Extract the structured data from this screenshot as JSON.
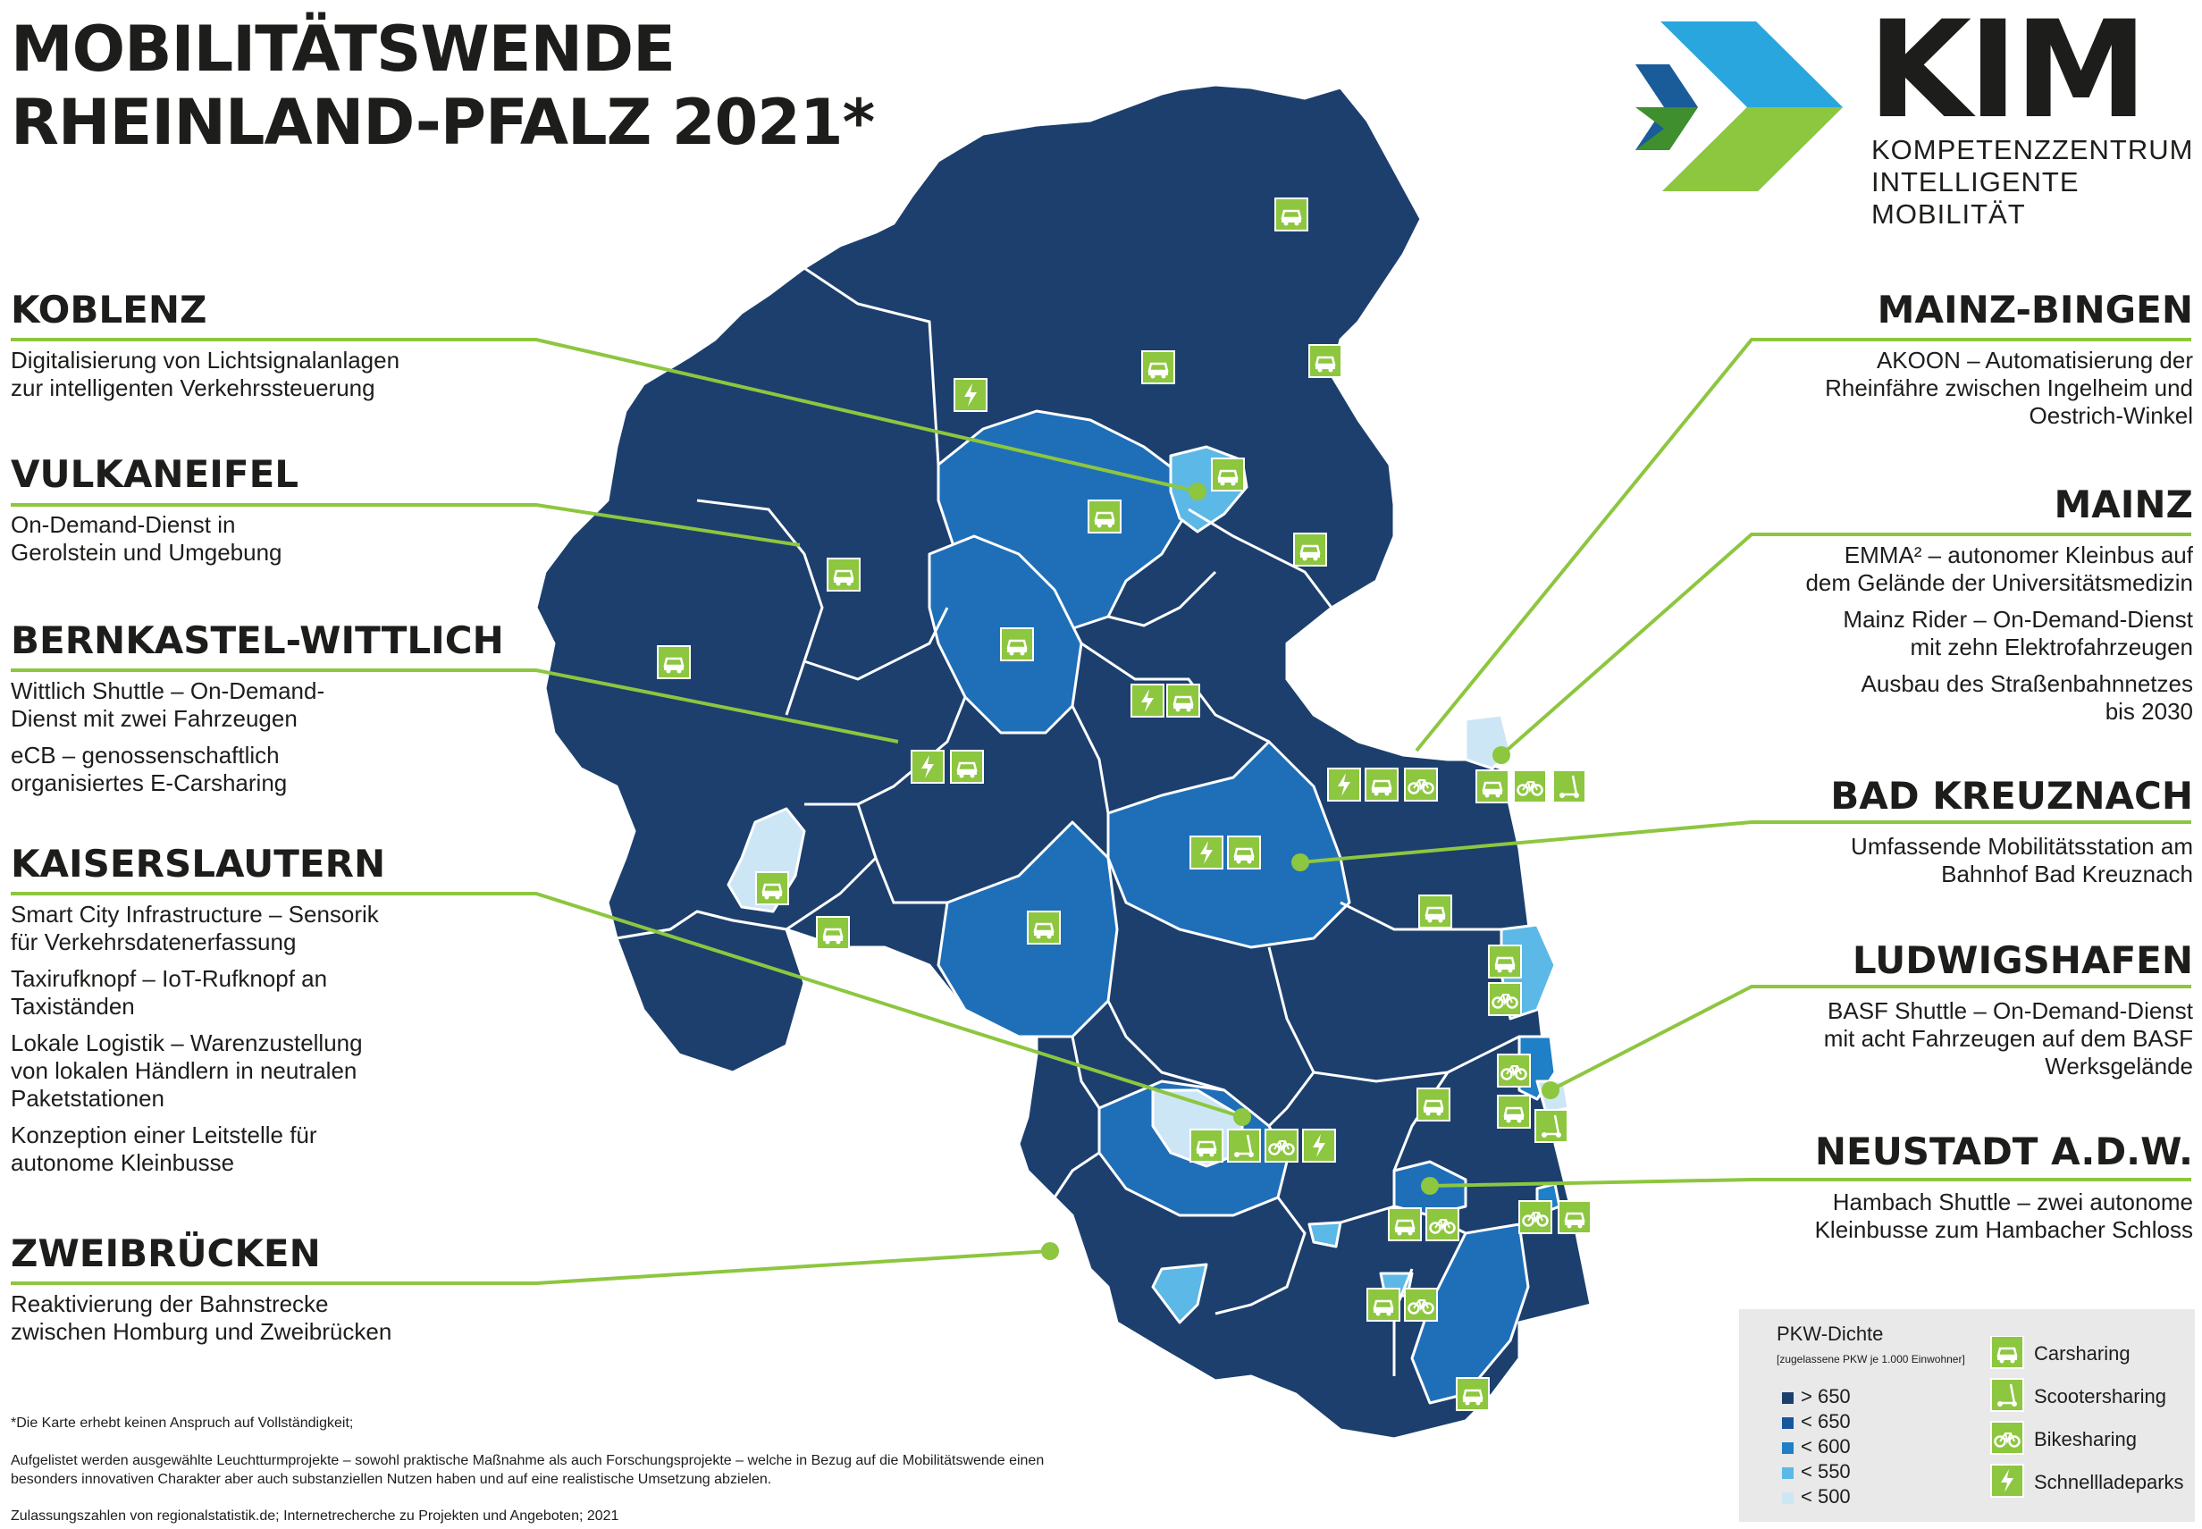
{
  "header": {
    "title_line1": "MOBILITÄTSWENDE",
    "title_line2": "RHEINLAND-PFALZ 2021*"
  },
  "brand": {
    "name": "KIM",
    "sub_line1": "KOMPETENZZENTRUM",
    "sub_line2": "INTELLIGENTE MOBILITÄT",
    "colors": {
      "dark_blue": "#1a5b9a",
      "light_blue": "#2aa6de",
      "green": "#8dc63f",
      "dark_green": "#3f8f2e"
    }
  },
  "sections_left": [
    {
      "title": "KOBLENZ",
      "lines": [
        "Digitalisierung von Lichtsignalanlagen",
        "zur intelligenten Verkehrssteuerung"
      ]
    },
    {
      "title": "VULKANEIFEL",
      "lines": [
        "On-Demand-Dienst in",
        "Gerolstein und Umgebung"
      ]
    },
    {
      "title": "BERNKASTEL-WITTLICH",
      "lines": [
        "Wittlich Shuttle – On-Demand-",
        "Dienst mit zwei Fahrzeugen",
        "eCB – genossenschaftlich",
        "organisiertes E-Carsharing"
      ]
    },
    {
      "title": "KAISERSLAUTERN",
      "lines": [
        "Smart City Infrastructure – Sensorik",
        "für Verkehrsdatenerfassung",
        "Taxirufknopf – IoT-Rufknopf an",
        "Taxiständen",
        "Lokale Logistik – Warenzustellung",
        "von lokalen Händlern in neutralen",
        "Paketstationen",
        "Konzeption einer Leitstelle für",
        "autonome Kleinbusse"
      ]
    },
    {
      "title": "ZWEIBRÜCKEN",
      "lines": [
        "Reaktivierung der Bahnstrecke",
        "zwischen Homburg und Zweibrücken"
      ]
    }
  ],
  "sections_right": [
    {
      "title": "MAINZ-BINGEN",
      "lines": [
        "AKOON – Automatisierung der",
        "Rheinfähre zwischen Ingelheim und",
        "Oestrich-Winkel"
      ]
    },
    {
      "title": "MAINZ",
      "lines": [
        "EMMA² – autonomer Kleinbus auf",
        "dem Gelände der Universitätsmedizin",
        "Mainz Rider – On-Demand-Dienst",
        "mit zehn Elektrofahrzeugen",
        "Ausbau des Straßenbahnnetzes",
        "bis 2030"
      ]
    },
    {
      "title": "BAD KREUZNACH",
      "lines": [
        "Umfassende Mobilitätsstation am",
        "Bahnhof Bad Kreuznach"
      ]
    },
    {
      "title": "LUDWIGSHAFEN",
      "lines": [
        "BASF Shuttle – On-Demand-Dienst",
        "mit acht Fahrzeugen auf dem BASF",
        "Werksgelände"
      ]
    },
    {
      "title": "NEUSTADT A.D.W.",
      "lines": [
        "Hambach Shuttle – zwei autonome",
        "Kleinbusse zum Hambacher Schloss"
      ]
    }
  ],
  "footnotes": {
    "note1": "*Die Karte erhebt keinen Anspruch auf Vollständigkeit;",
    "note2": "Aufgelistet werden ausgewählte Leuchtturmprojekte – sowohl praktische Maßnahme als auch Forschungsprojekte – welche in Bezug auf die Mobilitätswende einen besonders innovativen Charakter aber auch substanziellen Nutzen haben und auf eine realistische Umsetzung abzielen.",
    "note3": "Zulassungszahlen von regionalstatistik.de; Internetrecherche zu Projekten und Angeboten; 2021"
  },
  "legend": {
    "title": "PKW-Dichte",
    "subtitle": "[zugelassene PKW je 1.000 Einwohner]",
    "density": [
      {
        "label": "> 650",
        "color": "#1c3f6e"
      },
      {
        "label": "< 650",
        "color": "#15579c"
      },
      {
        "label": "< 600",
        "color": "#1f7fc7"
      },
      {
        "label": "< 550",
        "color": "#5cb8e6"
      },
      {
        "label": "< 500",
        "color": "#cde6f6"
      }
    ],
    "icons": [
      {
        "icon": "car-icon",
        "label": "Carsharing"
      },
      {
        "icon": "scooter-icon",
        "label": "Scootersharing"
      },
      {
        "icon": "bike-icon",
        "label": "Bikesharing"
      },
      {
        "icon": "charging-icon",
        "label": "Schnellladeparks"
      }
    ]
  },
  "map_colors": {
    "land": "#1c3f6e",
    "mid": "#1f6fb8",
    "light": "#5cb8e6",
    "pale": "#cde6f6",
    "icon_green": "#8dc63f",
    "line_green": "#8dc63f"
  }
}
